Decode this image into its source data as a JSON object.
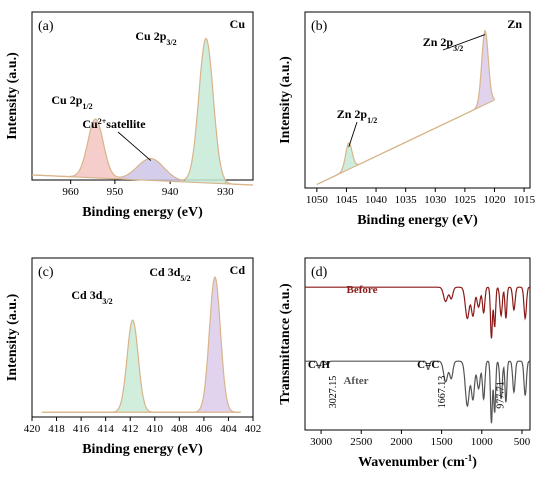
{
  "chart_data": [
    {
      "type": "area",
      "panel_label": "(a)",
      "element": "Cu",
      "xlabel": "Binding energy (eV)",
      "ylabel": "Intensity (a.u.)",
      "x_reversed": true,
      "xlim": [
        965,
        925
      ],
      "x_ticks": [
        "960",
        "950",
        "940",
        "930"
      ],
      "baseline": [
        [
          965,
          0.03
        ],
        [
          925,
          -0.03
        ]
      ],
      "peaks": [
        {
          "label_main": "Cu 2p",
          "label_sub": "1/2",
          "center": 953.5,
          "height": 0.35,
          "width": 1.4,
          "color": "#f3c6c2"
        },
        {
          "label_main": "Cu",
          "label_sup": "2+",
          "label_after": "satellite",
          "center": 943.5,
          "height": 0.13,
          "width": 2.4,
          "color": "#ccc6e8"
        },
        {
          "label_main": "Cu 2p",
          "label_sub": "3/2",
          "center": 933.5,
          "height": 0.86,
          "width": 1.3,
          "color": "#c5ead6"
        }
      ]
    },
    {
      "type": "area",
      "panel_label": "(b)",
      "element": "Zn",
      "xlabel": "Binding energy (eV)",
      "ylabel": "Intensity (a.u.)",
      "x_reversed": true,
      "xlim": [
        1052,
        1014
      ],
      "x_ticks": [
        "1050",
        "1045",
        "1040",
        "1035",
        "1030",
        "1025",
        "1020",
        "1015"
      ],
      "baseline": [
        [
          1050,
          0.02
        ],
        [
          1020,
          0.5
        ]
      ],
      "peaks": [
        {
          "label_main": "Zn 2p",
          "label_sub": "1/2",
          "center": 1044.6,
          "height": 0.15,
          "width": 0.55,
          "color": "#c5ead6"
        },
        {
          "label_main": "Zn 2p",
          "label_sub": "3/2",
          "center": 1021.6,
          "height": 0.42,
          "width": 0.55,
          "color": "#dccbea"
        }
      ]
    },
    {
      "type": "area",
      "panel_label": "(c)",
      "element": "Cd",
      "xlabel": "Binding energy (eV)",
      "ylabel": "Intensity (a.u.)",
      "x_reversed": true,
      "xlim": [
        420,
        402
      ],
      "x_ticks": [
        "420",
        "418",
        "416",
        "414",
        "412",
        "410",
        "408",
        "406",
        "404",
        "402"
      ],
      "baseline": [
        [
          419.2,
          0.03
        ],
        [
          403,
          0.03
        ]
      ],
      "peaks": [
        {
          "label_main": "Cd 3d",
          "label_sub": "3/2",
          "center": 411.8,
          "height": 0.58,
          "width": 0.45,
          "color": "#c9ebd6"
        },
        {
          "label_main": "Cd 3d",
          "label_sub": "5/2",
          "center": 405.1,
          "height": 0.85,
          "width": 0.45,
          "color": "#dccbea"
        }
      ]
    },
    {
      "type": "line",
      "panel_label": "(d)",
      "xlabel": "Wavenumber (cm",
      "xlabel_sup": "-1",
      "xlabel_after": ")",
      "ylabel": "Transmittance (a.u.)",
      "x_reversed": true,
      "xlim": [
        3200,
        400
      ],
      "x_ticks": [
        "3000",
        "2500",
        "2000",
        "1500",
        "1000",
        "500"
      ],
      "series": [
        {
          "name": "Before",
          "color": "#8b1a1a",
          "offset": 0.83,
          "amp": 0.33,
          "bands": [
            [
              1450,
              0.25,
              25
            ],
            [
              1380,
              0.2,
              20
            ],
            [
              1180,
              0.55,
              25
            ],
            [
              1110,
              0.5,
              20
            ],
            [
              1040,
              0.35,
              20
            ],
            [
              977,
              0.45,
              15
            ],
            [
              880,
              0.9,
              12
            ],
            [
              840,
              0.7,
              12
            ],
            [
              760,
              0.5,
              15
            ],
            [
              700,
              0.55,
              12
            ],
            [
              600,
              0.4,
              15
            ],
            [
              460,
              0.55,
              15
            ]
          ]
        },
        {
          "name": "After",
          "color": "#555555",
          "offset": 0.4,
          "amp": 0.4,
          "bands": [
            [
              3027,
              0.1,
              15
            ],
            [
              2920,
              0.05,
              15
            ],
            [
              1667,
              0.12,
              15
            ],
            [
              1450,
              0.3,
              25
            ],
            [
              1380,
              0.25,
              20
            ],
            [
              1180,
              0.65,
              25
            ],
            [
              1110,
              0.55,
              20
            ],
            [
              1040,
              0.4,
              20
            ],
            [
              977,
              0.55,
              15
            ],
            [
              880,
              0.9,
              12
            ],
            [
              840,
              0.75,
              12
            ],
            [
              760,
              0.55,
              15
            ],
            [
              700,
              0.6,
              12
            ],
            [
              600,
              0.45,
              15
            ],
            [
              460,
              0.5,
              15
            ]
          ]
        }
      ],
      "annotations": [
        {
          "group": "C–H",
          "value": "3027.15"
        },
        {
          "group": "C=C",
          "value": "1667.13"
        },
        {
          "group": "",
          "value": "977.71"
        }
      ]
    }
  ]
}
